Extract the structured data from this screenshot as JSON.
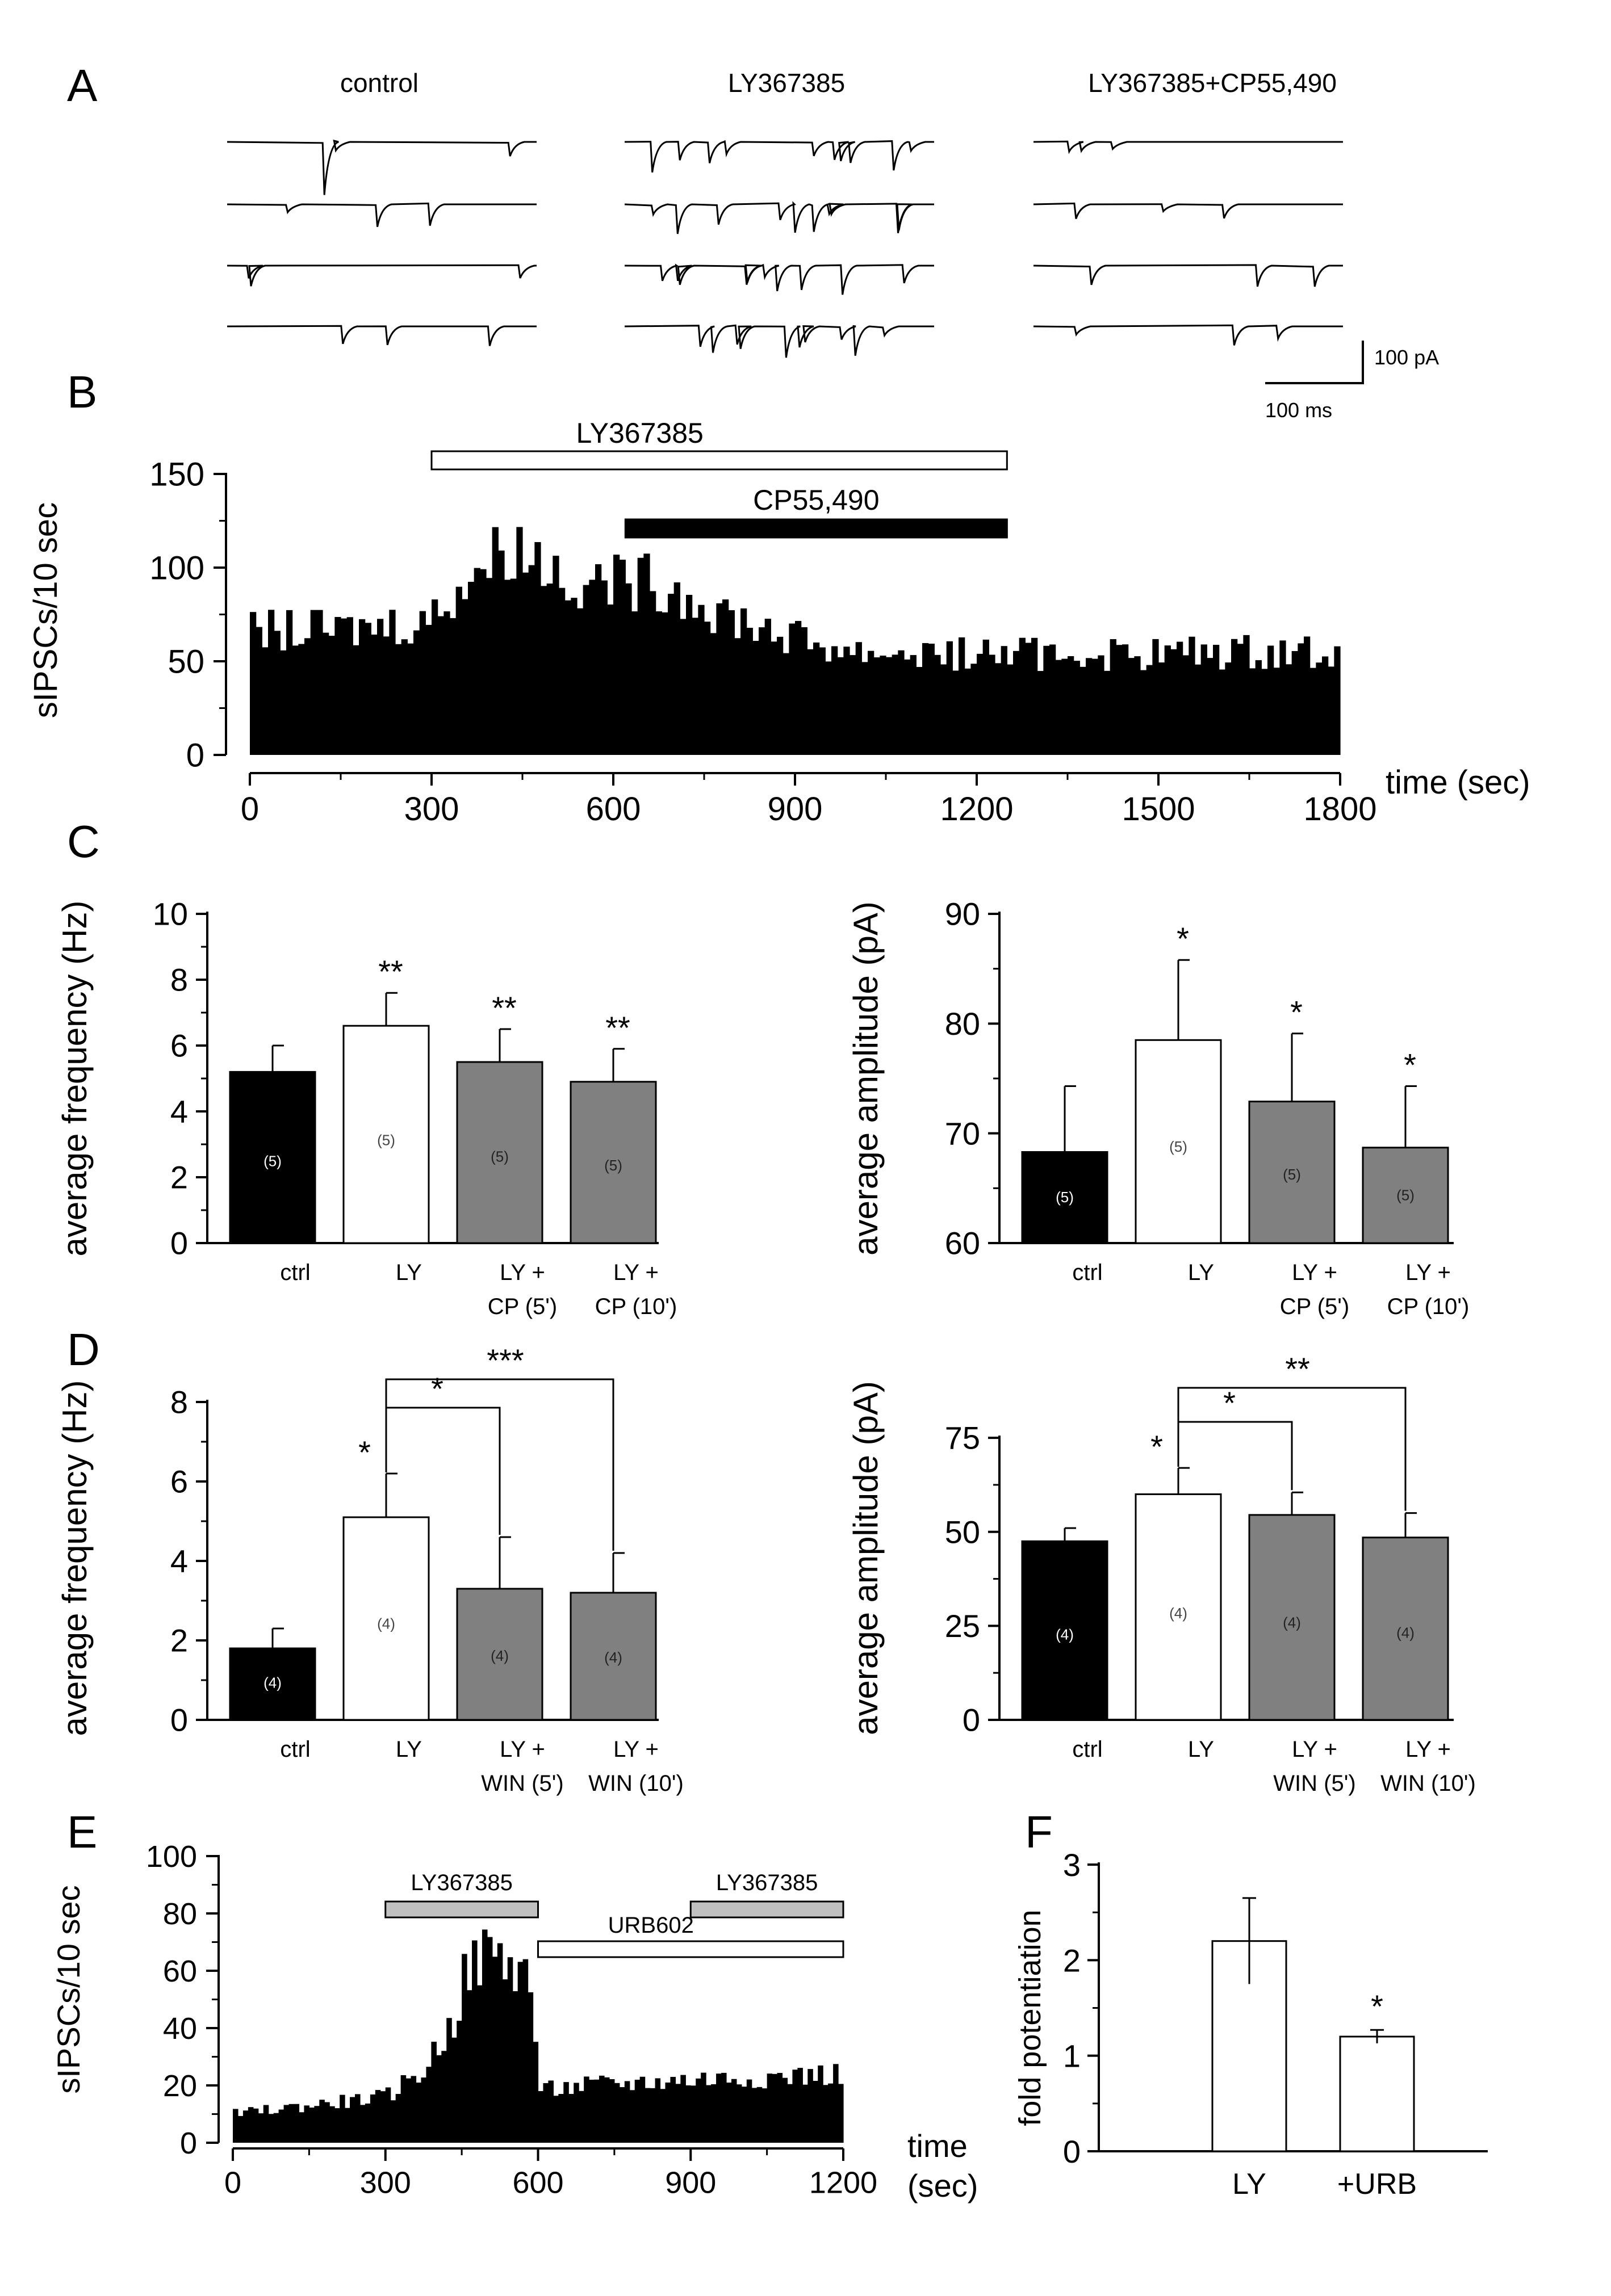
{
  "panel_letters": [
    "A",
    "B",
    "C",
    "D",
    "E",
    "F"
  ],
  "panelA": {
    "titles": [
      "control",
      "LY367385",
      "LY367385+CP55,490"
    ],
    "scale_pa": "100 pA",
    "scale_ms": "100 ms"
  },
  "chart_data": [
    {
      "id": "B",
      "type": "bar",
      "subtype": "histogram",
      "ylabel": "sIPSCs/10 sec",
      "xlabel": "time (sec)",
      "xlim": [
        0,
        1800
      ],
      "ylim": [
        0,
        150
      ],
      "xticks": [
        0,
        300,
        600,
        900,
        1200,
        1500,
        1800
      ],
      "yticks": [
        0,
        50,
        100,
        150
      ],
      "bin_sec": 10,
      "segments": [
        [
          0,
          66
        ],
        [
          150,
          66
        ],
        [
          300,
          72
        ],
        [
          350,
          92
        ],
        [
          430,
          112
        ],
        [
          470,
          106
        ],
        [
          520,
          96
        ],
        [
          600,
          92
        ],
        [
          680,
          92
        ],
        [
          780,
          76
        ],
        [
          900,
          62
        ],
        [
          1000,
          55
        ],
        [
          1200,
          54
        ],
        [
          1500,
          54
        ],
        [
          1800,
          56
        ]
      ],
      "bars": [
        {
          "label": "LY367385",
          "from": 300,
          "to": 1250,
          "fill": "#ffffff"
        },
        {
          "label": "CP55,490",
          "from": 620,
          "to": 1250,
          "fill": "#000000"
        }
      ]
    },
    {
      "id": "C-left",
      "type": "bar",
      "ylabel": "average frequency (Hz)",
      "ylim": [
        0,
        10
      ],
      "yticks": [
        0,
        2,
        4,
        6,
        8,
        10
      ],
      "categories": [
        "ctrl",
        "LY",
        "LY +\nCP (5')",
        "LY +\nCP (10')"
      ],
      "values": [
        5.2,
        6.6,
        5.5,
        4.9
      ],
      "errors": [
        0.8,
        1.0,
        1.0,
        1.0
      ],
      "n_labels": [
        "(5)",
        "(5)",
        "(5)",
        "(5)"
      ],
      "significance": [
        "",
        "**",
        "**",
        "**"
      ],
      "colors": [
        "#000000",
        "#ffffff",
        "#808080",
        "#808080"
      ]
    },
    {
      "id": "C-right",
      "type": "bar",
      "ylabel": "average amplitude (pA)",
      "ylim": [
        60,
        90
      ],
      "yticks": [
        60,
        70,
        80,
        90
      ],
      "categories": [
        "ctrl",
        "LY",
        "LY +\nCP (5')",
        "LY +\nCP (10')"
      ],
      "values": [
        68.3,
        78.5,
        72.9,
        68.7
      ],
      "errors": [
        6.0,
        7.3,
        6.2,
        5.6
      ],
      "n_labels": [
        "(5)",
        "(5)",
        "(5)",
        "(5)"
      ],
      "significance": [
        "",
        "*",
        "*",
        "*"
      ],
      "colors": [
        "#000000",
        "#ffffff",
        "#808080",
        "#808080"
      ]
    },
    {
      "id": "D-left",
      "type": "bar",
      "ylabel": "average frequency (Hz)",
      "ylim": [
        0,
        8
      ],
      "yticks": [
        0,
        2,
        4,
        6,
        8
      ],
      "categories": [
        "ctrl",
        "LY",
        "LY +\nWIN (5')",
        "LY +\nWIN (10')"
      ],
      "values": [
        1.8,
        5.1,
        3.3,
        3.2
      ],
      "errors": [
        0.5,
        1.1,
        1.3,
        1.0
      ],
      "n_labels": [
        "(4)",
        "(4)",
        "(4)",
        "(4)"
      ],
      "significance": [
        "",
        "*",
        "",
        ""
      ],
      "brackets": [
        {
          "from": 1,
          "to": 2,
          "label": "*"
        },
        {
          "from": 1,
          "to": 3,
          "label": "***"
        }
      ],
      "colors": [
        "#000000",
        "#ffffff",
        "#808080",
        "#808080"
      ]
    },
    {
      "id": "D-right",
      "type": "bar",
      "ylabel": "average amplitude (pA)",
      "ylim": [
        0,
        80
      ],
      "yticks": [
        0,
        25,
        50,
        75
      ],
      "categories": [
        "ctrl",
        "LY",
        "LY +\nWIN (5')",
        "LY +\nWIN (10')"
      ],
      "values": [
        47.5,
        60,
        54.5,
        48.5
      ],
      "errors": [
        3.5,
        7,
        6,
        6.5
      ],
      "n_labels": [
        "(4)",
        "(4)",
        "(4)",
        "(4)"
      ],
      "significance": [
        "",
        "*",
        "",
        ""
      ],
      "brackets": [
        {
          "from": 1,
          "to": 2,
          "label": "*"
        },
        {
          "from": 1,
          "to": 3,
          "label": "**"
        }
      ],
      "colors": [
        "#000000",
        "#ffffff",
        "#808080",
        "#808080"
      ]
    },
    {
      "id": "E",
      "type": "bar",
      "subtype": "histogram",
      "ylabel": "sIPSCs/10 sec",
      "xlabel": "time\n(sec)",
      "xlim": [
        0,
        1200
      ],
      "ylim": [
        0,
        100
      ],
      "xticks": [
        0,
        300,
        600,
        900,
        1200
      ],
      "yticks": [
        0,
        20,
        40,
        60,
        80,
        100
      ],
      "bin_sec": 10,
      "segments": [
        [
          0,
          10
        ],
        [
          150,
          13
        ],
        [
          300,
          16
        ],
        [
          380,
          26
        ],
        [
          440,
          45
        ],
        [
          460,
          60
        ],
        [
          500,
          66
        ],
        [
          560,
          62
        ],
        [
          590,
          55
        ],
        [
          600,
          18
        ],
        [
          700,
          20
        ],
        [
          900,
          22
        ],
        [
          1200,
          24
        ]
      ],
      "bars": [
        {
          "label": "LY367385",
          "from": 300,
          "to": 600,
          "fill": "#c0c0c0"
        },
        {
          "label": "LY367385",
          "from": 900,
          "to": 1200,
          "fill": "#c0c0c0"
        },
        {
          "label": "URB602",
          "from": 600,
          "to": 1200,
          "fill": "#ffffff"
        }
      ]
    },
    {
      "id": "F",
      "type": "bar",
      "ylabel": "fold potentiation",
      "ylim": [
        0,
        3
      ],
      "yticks": [
        0,
        1,
        2,
        3
      ],
      "categories": [
        "LY",
        "+URB"
      ],
      "values": [
        2.2,
        1.2
      ],
      "errors": [
        0.45,
        0.07
      ],
      "significance": [
        "",
        "*"
      ],
      "colors": [
        "#ffffff",
        "#ffffff"
      ]
    }
  ]
}
